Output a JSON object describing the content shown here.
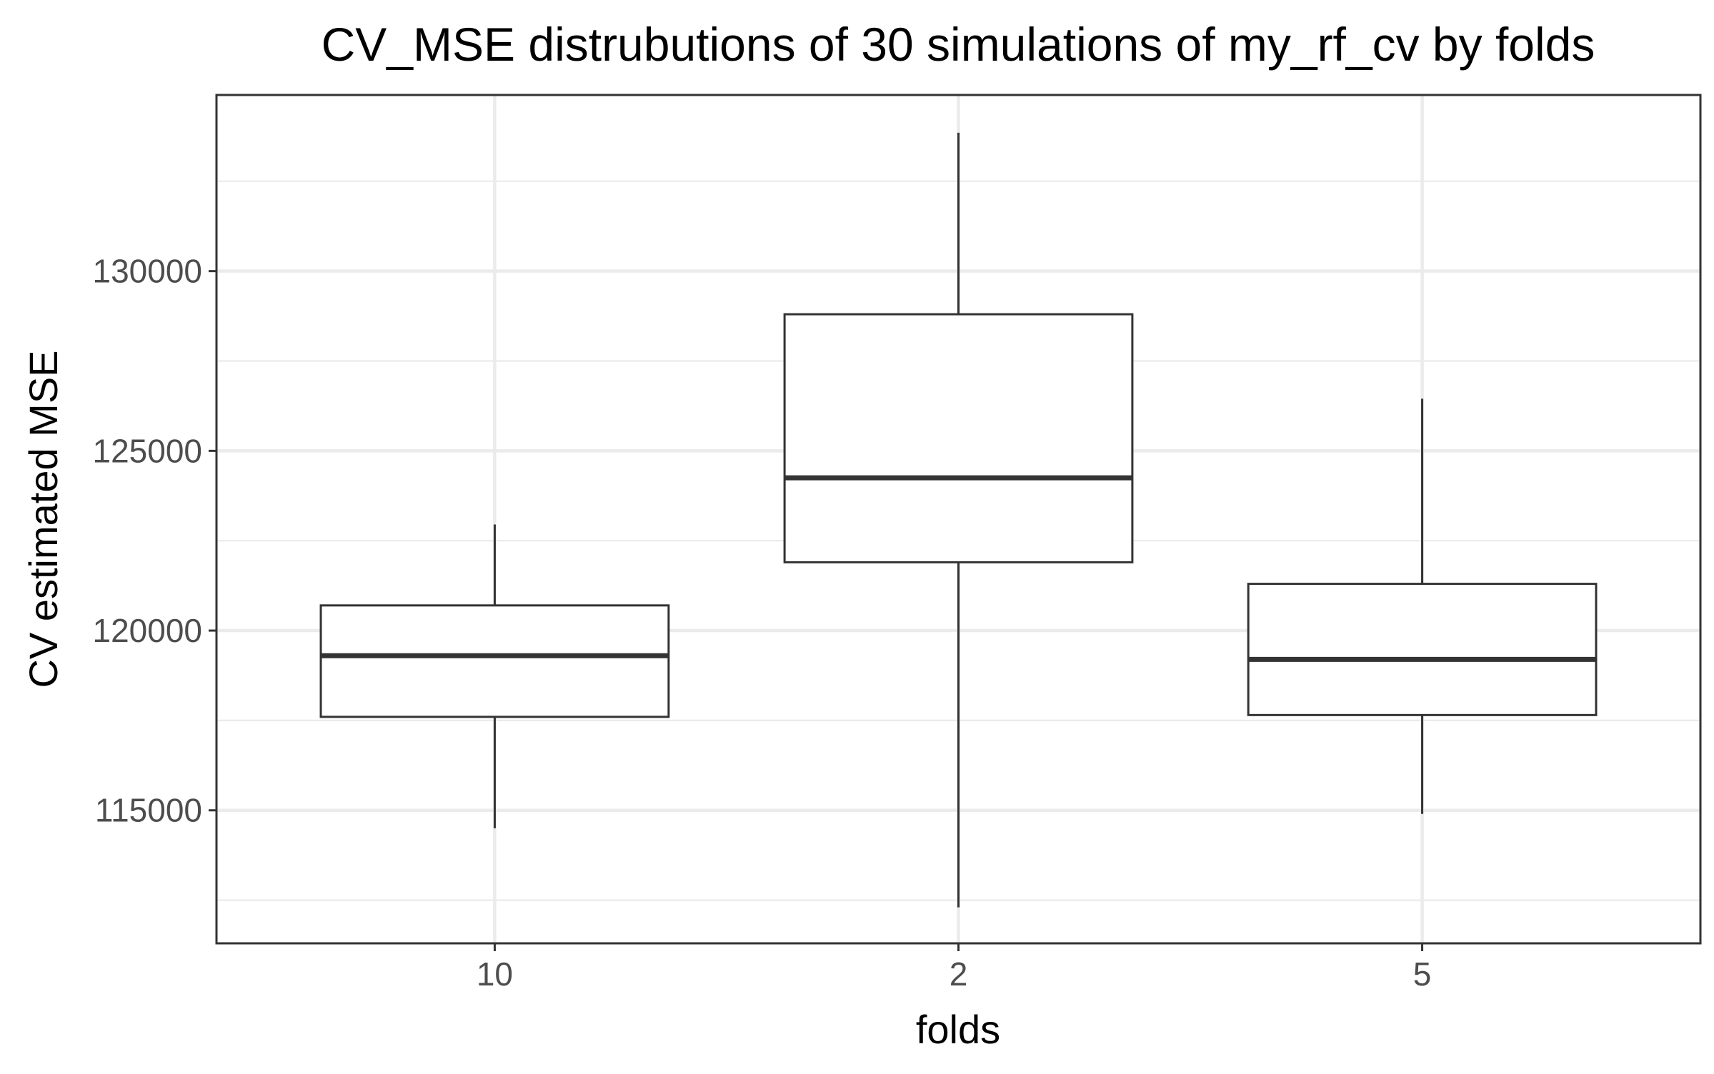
{
  "chart_data": {
    "type": "boxplot",
    "title": "CV_MSE distrubutions of 30 simulations of my_rf_cv by folds",
    "xlabel": "folds",
    "ylabel": "CV estimated MSE",
    "categories": [
      "10",
      "2",
      "5"
    ],
    "boxes": [
      {
        "category": "10",
        "lower_whisker": 114500,
        "q1": 117600,
        "median": 119300,
        "q3": 120700,
        "upper_whisker": 122950
      },
      {
        "category": "2",
        "lower_whisker": 112300,
        "q1": 121900,
        "median": 124250,
        "q3": 128800,
        "upper_whisker": 133850
      },
      {
        "category": "5",
        "lower_whisker": 114900,
        "q1": 117650,
        "median": 119200,
        "q3": 121300,
        "upper_whisker": 126450
      }
    ],
    "y_ticks": [
      115000,
      120000,
      125000,
      130000
    ],
    "y_tick_labels": [
      "115000",
      "120000",
      "125000",
      "130000"
    ],
    "ylim": [
      111300,
      134900
    ],
    "grid": true,
    "legend": "none"
  },
  "colors": {
    "box_stroke": "#333333",
    "box_fill": "#ffffff",
    "grid": "#ebebeb",
    "tick_text": "#4d4d4d",
    "text": "#000000"
  }
}
